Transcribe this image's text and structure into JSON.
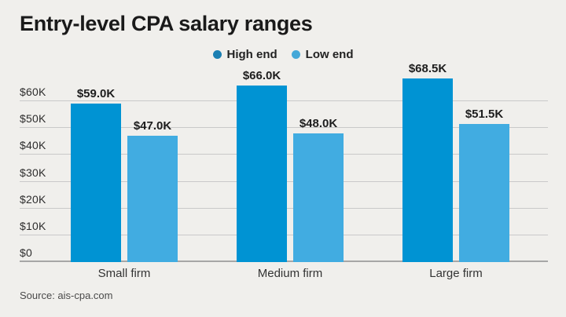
{
  "title": "Entry-level CPA salary ranges",
  "source": "Source: ais-cpa.com",
  "legend": [
    {
      "label": "High end",
      "dot_color": "#1b7fb2"
    },
    {
      "label": "Low end",
      "dot_color": "#45a8d8"
    }
  ],
  "colors": {
    "background": "#f0efec",
    "high_end_bar": "#0093d3",
    "low_end_bar": "#41ace1",
    "gridline": "#c9c9c9",
    "baseline": "#a6a6a6",
    "text": "#1a1a1a"
  },
  "chart_data": {
    "type": "bar",
    "title": "Entry-level CPA salary ranges",
    "categories": [
      "Small firm",
      "Medium firm",
      "Large firm"
    ],
    "series": [
      {
        "name": "High end",
        "color": "#0093d3",
        "values": [
          59.0,
          66.0,
          68.5
        ],
        "labels": [
          "$59.0K",
          "$66.0K",
          "$68.5K"
        ]
      },
      {
        "name": "Low end",
        "color": "#41ace1",
        "values": [
          47.0,
          48.0,
          51.5
        ],
        "labels": [
          "$47.0K",
          "$48.0K",
          "$51.5K"
        ]
      }
    ],
    "xlabel": "",
    "ylabel": "",
    "ylim": [
      0,
      70
    ],
    "unit": "thousand USD",
    "grid": true,
    "legend_position": "top-center",
    "yticks": [
      {
        "value": 0,
        "label": "$0"
      },
      {
        "value": 10,
        "label": "$10K"
      },
      {
        "value": 20,
        "label": "$20K"
      },
      {
        "value": 30,
        "label": "$30K"
      },
      {
        "value": 40,
        "label": "$40K"
      },
      {
        "value": 50,
        "label": "$50K"
      },
      {
        "value": 60,
        "label": "$60K"
      }
    ]
  }
}
